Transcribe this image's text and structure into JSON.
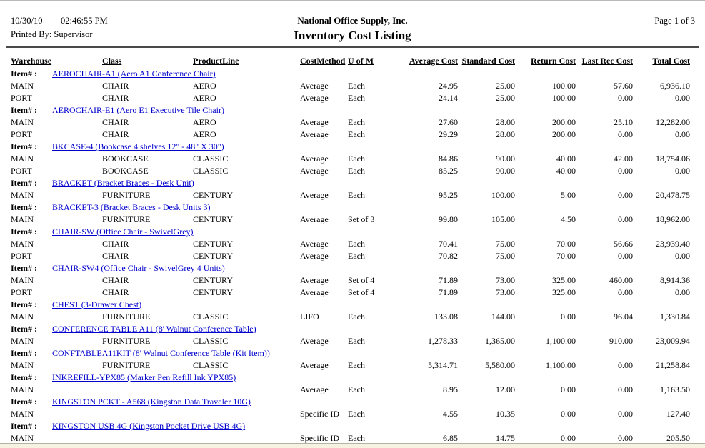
{
  "page": {
    "date": "10/30/10",
    "time": "02:46:55 PM",
    "printed_by": "Printed By: Supervisor",
    "company": "National Office Supply, Inc.",
    "report_title": "Inventory Cost Listing",
    "page_info": "Page 1 of 3"
  },
  "colors": {
    "link_blue": "#0000cc",
    "footer_strip": "#f6f2e2"
  },
  "table": {
    "item_prefix": "Item# :",
    "columns": [
      "Warehouse",
      "Class",
      "ProductLine",
      "CostMethod",
      "U of M",
      "Average Cost",
      "Standard Cost",
      "Return Cost",
      "Last Rec Cost",
      "Total Cost"
    ],
    "items": [
      {
        "label": "AEROCHAIR-A1 (Aero A1 Conference Chair)",
        "rows": [
          {
            "warehouse": "MAIN",
            "class": "CHAIR",
            "product_line": "AERO",
            "cost_method": "Average",
            "uom": "Each",
            "average_cost": "24.95",
            "standard_cost": "25.00",
            "return_cost": "100.00",
            "last_rec_cost": "57.60",
            "total_cost": "6,936.10"
          },
          {
            "warehouse": "PORT",
            "class": "CHAIR",
            "product_line": "AERO",
            "cost_method": "Average",
            "uom": "Each",
            "average_cost": "24.14",
            "standard_cost": "25.00",
            "return_cost": "100.00",
            "last_rec_cost": "0.00",
            "total_cost": "0.00"
          }
        ]
      },
      {
        "label": "AEROCHAIR-E1 (Aero E1 Executive Tile Chair)",
        "rows": [
          {
            "warehouse": "MAIN",
            "class": "CHAIR",
            "product_line": "AERO",
            "cost_method": "Average",
            "uom": "Each",
            "average_cost": "27.60",
            "standard_cost": "28.00",
            "return_cost": "200.00",
            "last_rec_cost": "25.10",
            "total_cost": "12,282.00"
          },
          {
            "warehouse": "PORT",
            "class": "CHAIR",
            "product_line": "AERO",
            "cost_method": "Average",
            "uom": "Each",
            "average_cost": "29.29",
            "standard_cost": "28.00",
            "return_cost": "200.00",
            "last_rec_cost": "0.00",
            "total_cost": "0.00"
          }
        ]
      },
      {
        "label": "BKCASE-4 (Bookcase 4 shelves 12\" - 48\" X 30\")",
        "rows": [
          {
            "warehouse": "MAIN",
            "class": "BOOKCASE",
            "product_line": "CLASSIC",
            "cost_method": "Average",
            "uom": "Each",
            "average_cost": "84.86",
            "standard_cost": "90.00",
            "return_cost": "40.00",
            "last_rec_cost": "42.00",
            "total_cost": "18,754.06"
          },
          {
            "warehouse": "PORT",
            "class": "BOOKCASE",
            "product_line": "CLASSIC",
            "cost_method": "Average",
            "uom": "Each",
            "average_cost": "85.25",
            "standard_cost": "90.00",
            "return_cost": "40.00",
            "last_rec_cost": "0.00",
            "total_cost": "0.00"
          }
        ]
      },
      {
        "label": "BRACKET (Bracket Braces - Desk Unit)",
        "rows": [
          {
            "warehouse": "MAIN",
            "class": "FURNITURE",
            "product_line": "CENTURY",
            "cost_method": "Average",
            "uom": "Each",
            "average_cost": "95.25",
            "standard_cost": "100.00",
            "return_cost": "5.00",
            "last_rec_cost": "0.00",
            "total_cost": "20,478.75"
          }
        ]
      },
      {
        "label": "BRACKET-3 (Bracket Braces - Desk Units 3)",
        "rows": [
          {
            "warehouse": "MAIN",
            "class": "FURNITURE",
            "product_line": "CENTURY",
            "cost_method": "Average",
            "uom": "Set of 3",
            "average_cost": "99.80",
            "standard_cost": "105.00",
            "return_cost": "4.50",
            "last_rec_cost": "0.00",
            "total_cost": "18,962.00"
          }
        ]
      },
      {
        "label": "CHAIR-SW (Office Chair - SwivelGrey)",
        "rows": [
          {
            "warehouse": "MAIN",
            "class": "CHAIR",
            "product_line": "CENTURY",
            "cost_method": "Average",
            "uom": "Each",
            "average_cost": "70.41",
            "standard_cost": "75.00",
            "return_cost": "70.00",
            "last_rec_cost": "56.66",
            "total_cost": "23,939.40"
          },
          {
            "warehouse": "PORT",
            "class": "CHAIR",
            "product_line": "CENTURY",
            "cost_method": "Average",
            "uom": "Each",
            "average_cost": "70.82",
            "standard_cost": "75.00",
            "return_cost": "70.00",
            "last_rec_cost": "0.00",
            "total_cost": "0.00"
          }
        ]
      },
      {
        "label": "CHAIR-SW4 (Office Chair - SwivelGrey 4 Units)",
        "rows": [
          {
            "warehouse": "MAIN",
            "class": "CHAIR",
            "product_line": "CENTURY",
            "cost_method": "Average",
            "uom": "Set of 4",
            "average_cost": "71.89",
            "standard_cost": "73.00",
            "return_cost": "325.00",
            "last_rec_cost": "460.00",
            "total_cost": "8,914.36"
          },
          {
            "warehouse": "PORT",
            "class": "CHAIR",
            "product_line": "CENTURY",
            "cost_method": "Average",
            "uom": "Set of 4",
            "average_cost": "71.89",
            "standard_cost": "73.00",
            "return_cost": "325.00",
            "last_rec_cost": "0.00",
            "total_cost": "0.00"
          }
        ]
      },
      {
        "label": "CHEST (3-Drawer Chest)",
        "rows": [
          {
            "warehouse": "MAIN",
            "class": "FURNITURE",
            "product_line": "CLASSIC",
            "cost_method": "LIFO",
            "uom": "Each",
            "average_cost": "133.08",
            "standard_cost": "144.00",
            "return_cost": "0.00",
            "last_rec_cost": "96.04",
            "total_cost": "1,330.84"
          }
        ]
      },
      {
        "label": "CONFERENCE TABLE A11 (8' Walnut Conference Table)",
        "rows": [
          {
            "warehouse": "MAIN",
            "class": "FURNITURE",
            "product_line": "CLASSIC",
            "cost_method": "Average",
            "uom": "Each",
            "average_cost": "1,278.33",
            "standard_cost": "1,365.00",
            "return_cost": "1,100.00",
            "last_rec_cost": "910.00",
            "total_cost": "23,009.94"
          }
        ]
      },
      {
        "label": "CONFTABLEA11KIT (8' Walnut Conference Table (Kit Item))",
        "rows": [
          {
            "warehouse": "MAIN",
            "class": "FURNITURE",
            "product_line": "CLASSIC",
            "cost_method": "Average",
            "uom": "Each",
            "average_cost": "5,314.71",
            "standard_cost": "5,580.00",
            "return_cost": "1,100.00",
            "last_rec_cost": "0.00",
            "total_cost": "21,258.84"
          }
        ]
      },
      {
        "label": "INKREFILL-YPX85 (Marker Pen Refill Ink YPX85)",
        "rows": [
          {
            "warehouse": "MAIN",
            "class": "",
            "product_line": "",
            "cost_method": "Average",
            "uom": "Each",
            "average_cost": "8.95",
            "standard_cost": "12.00",
            "return_cost": "0.00",
            "last_rec_cost": "0.00",
            "total_cost": "1,163.50"
          }
        ]
      },
      {
        "label": "KINGSTON PCKT - A568 (Kingston Data Traveler 10G)",
        "rows": [
          {
            "warehouse": "MAIN",
            "class": "",
            "product_line": "",
            "cost_method": "Specific ID",
            "uom": "Each",
            "average_cost": "4.55",
            "standard_cost": "10.35",
            "return_cost": "0.00",
            "last_rec_cost": "0.00",
            "total_cost": "127.40"
          }
        ]
      },
      {
        "label": "KINGSTON USB 4G (Kingston Pocket Drive USB 4G)",
        "rows": [
          {
            "warehouse": "MAIN",
            "class": "",
            "product_line": "",
            "cost_method": "Specific ID",
            "uom": "Each",
            "average_cost": "6.85",
            "standard_cost": "14.75",
            "return_cost": "0.00",
            "last_rec_cost": "0.00",
            "total_cost": "205.50"
          }
        ]
      }
    ]
  }
}
